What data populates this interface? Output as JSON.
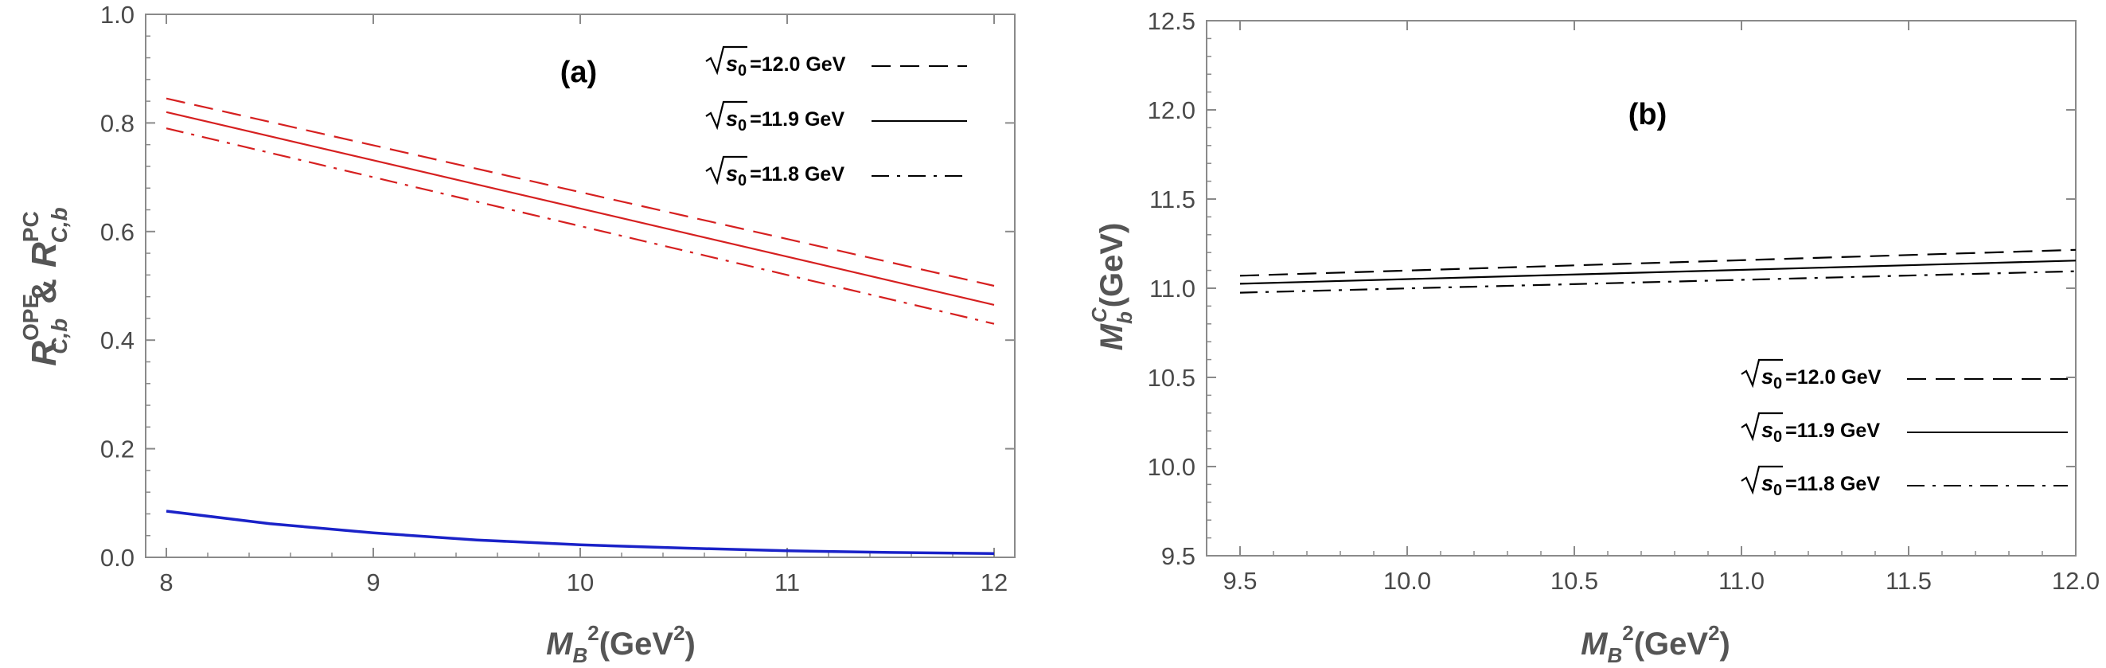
{
  "chart_data": [
    {
      "type": "line",
      "panel_label": "(a)",
      "xlabel": "M_B^2(GeV^2)",
      "xlabel_parts": {
        "base": "M",
        "sub": "B",
        "sup": "2",
        "rest": "(GeV",
        "sup2": "2",
        "close": ")"
      },
      "ylabel": "R^OPE_C,b & R^PC_C,b",
      "ylabel_parts": {
        "r1": "R",
        "sup1": "OPE",
        "sub1": "C,b",
        "amp": "&",
        "r2": "R",
        "sup2": "PC",
        "sub2": "C,b"
      },
      "xlim": [
        7.9,
        12.1
      ],
      "ylim": [
        0.0,
        1.0
      ],
      "x_ticks": [
        8,
        9,
        10,
        11,
        12
      ],
      "x_tick_labels": [
        "8",
        "9",
        "10",
        "11",
        "12"
      ],
      "y_ticks": [
        0.0,
        0.2,
        0.4,
        0.6,
        0.8,
        1.0
      ],
      "y_tick_labels": [
        "0.0",
        "0.2",
        "0.4",
        "0.6",
        "0.8",
        "1.0"
      ],
      "legend_position": "top-right",
      "series": [
        {
          "name": "√s0=12.0 GeV",
          "style": "dashed",
          "color": "#d62020",
          "x": [
            8,
            12
          ],
          "y": [
            0.845,
            0.5
          ]
        },
        {
          "name": "√s0=11.9 GeV",
          "style": "solid",
          "color": "#d62020",
          "x": [
            8,
            12
          ],
          "y": [
            0.82,
            0.465
          ]
        },
        {
          "name": "√s0=11.8 GeV",
          "style": "dashdot",
          "color": "#d62020",
          "x": [
            8,
            12
          ],
          "y": [
            0.79,
            0.43
          ]
        },
        {
          "name": "PC ratio",
          "style": "solid",
          "color": "#1a22c8",
          "x": [
            8,
            8.5,
            9,
            9.5,
            10,
            10.5,
            11,
            11.5,
            12
          ],
          "y": [
            0.085,
            0.062,
            0.045,
            0.032,
            0.023,
            0.017,
            0.012,
            0.009,
            0.007
          ]
        }
      ],
      "legend": [
        {
          "prefix": "√",
          "label": "s0",
          "value": "=12.0 GeV",
          "style": "dashed"
        },
        {
          "prefix": "√",
          "label": "s0",
          "value": "=11.9 GeV",
          "style": "solid"
        },
        {
          "prefix": "√",
          "label": "s0",
          "value": "=11.8 GeV",
          "style": "dashdot"
        }
      ]
    },
    {
      "type": "line",
      "panel_label": "(b)",
      "xlabel": "M_B^2(GeV^2)",
      "xlabel_parts": {
        "base": "M",
        "sub": "B",
        "sup": "2",
        "rest": "(GeV",
        "sup2": "2",
        "close": ")"
      },
      "ylabel": "M_b^C(GeV)",
      "ylabel_parts": {
        "base": "M",
        "sub": "b",
        "sup": "C",
        "rest": "(GeV)"
      },
      "xlim": [
        9.4,
        12.0
      ],
      "ylim": [
        9.5,
        12.5
      ],
      "x_ticks": [
        9.5,
        10.0,
        10.5,
        11.0,
        11.5,
        12.0
      ],
      "x_tick_labels": [
        "9.5",
        "10.0",
        "10.5",
        "11.0",
        "11.5",
        "12.0"
      ],
      "y_ticks": [
        9.5,
        10.0,
        10.5,
        11.0,
        11.5,
        12.0,
        12.5
      ],
      "y_tick_labels": [
        "9.5",
        "10.0",
        "10.5",
        "11.0",
        "11.5",
        "12.0",
        "12.5"
      ],
      "legend_position": "bottom-right",
      "series": [
        {
          "name": "√s0=12.0 GeV",
          "style": "dashed",
          "color": "#000000",
          "x": [
            9.5,
            12.0
          ],
          "y": [
            11.07,
            11.215
          ]
        },
        {
          "name": "√s0=11.9 GeV",
          "style": "solid",
          "color": "#000000",
          "x": [
            9.5,
            12.0
          ],
          "y": [
            11.025,
            11.155
          ]
        },
        {
          "name": "√s0=11.8 GeV",
          "style": "dashdot",
          "color": "#000000",
          "x": [
            9.5,
            12.0
          ],
          "y": [
            10.975,
            11.095
          ]
        }
      ],
      "legend": [
        {
          "prefix": "√",
          "label": "s0",
          "value": "=12.0 GeV",
          "style": "dashed"
        },
        {
          "prefix": "√",
          "label": "s0",
          "value": "=11.9 GeV",
          "style": "solid"
        },
        {
          "prefix": "√",
          "label": "s0",
          "value": "=11.8 GeV",
          "style": "dashdot"
        }
      ]
    }
  ]
}
